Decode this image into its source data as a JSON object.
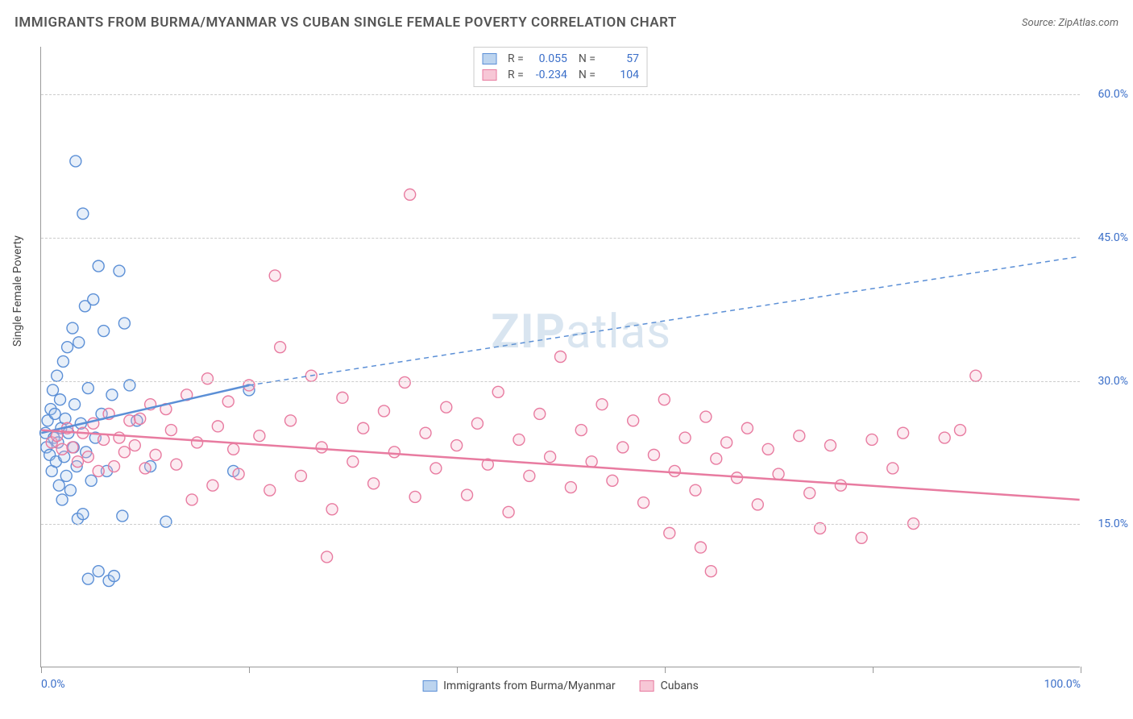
{
  "header": {
    "title": "IMMIGRANTS FROM BURMA/MYANMAR VS CUBAN SINGLE FEMALE POVERTY CORRELATION CHART",
    "source_prefix": "Source: ",
    "source_name": "ZipAtlas.com"
  },
  "chart": {
    "type": "scatter",
    "ylabel": "Single Female Poverty",
    "xlim": [
      0,
      100
    ],
    "ylim": [
      0,
      65
    ],
    "yticks": [
      {
        "value": 15,
        "label": "15.0%"
      },
      {
        "value": 30,
        "label": "30.0%"
      },
      {
        "value": 45,
        "label": "45.0%"
      },
      {
        "value": 60,
        "label": "60.0%"
      }
    ],
    "xtick_positions": [
      0,
      20,
      40,
      60,
      80,
      100
    ],
    "xtick_labels": {
      "start": "0.0%",
      "end": "100.0%"
    },
    "grid_color": "#cccccc",
    "axis_color": "#999999",
    "background_color": "#ffffff",
    "tick_label_color": "#3b6fc9",
    "marker_radius": 7,
    "marker_fill_opacity": 0.28,
    "marker_stroke_width": 1.4,
    "line_width_solid": 2.5,
    "line_width_dashed": 1.5,
    "dash_pattern": "6,5"
  },
  "watermark": {
    "bold": "ZIP",
    "rest": "atlas"
  },
  "series": [
    {
      "key": "burma",
      "label": "Immigrants from Burma/Myanmar",
      "color_stroke": "#5b8fd6",
      "color_fill": "#a8c5e8",
      "swatch_fill": "#bcd4ef",
      "swatch_border": "#5b8fd6",
      "R": "0.055",
      "N": "57",
      "trend": {
        "solid": {
          "x1": 0,
          "y1": 24.5,
          "x2": 20,
          "y2": 29.5
        },
        "dashed": {
          "x1": 20,
          "y1": 29.5,
          "x2": 100,
          "y2": 43.0
        }
      },
      "points": [
        [
          0.4,
          24.5
        ],
        [
          0.5,
          23.0
        ],
        [
          0.6,
          25.8
        ],
        [
          0.8,
          22.2
        ],
        [
          0.9,
          27.0
        ],
        [
          1.0,
          20.5
        ],
        [
          1.1,
          29.0
        ],
        [
          1.2,
          24.0
        ],
        [
          1.3,
          26.5
        ],
        [
          1.4,
          21.5
        ],
        [
          1.5,
          30.5
        ],
        [
          1.6,
          23.5
        ],
        [
          1.7,
          19.0
        ],
        [
          1.8,
          28.0
        ],
        [
          1.9,
          25.0
        ],
        [
          2.0,
          17.5
        ],
        [
          2.1,
          32.0
        ],
        [
          2.2,
          22.0
        ],
        [
          2.3,
          26.0
        ],
        [
          2.4,
          20.0
        ],
        [
          2.5,
          33.5
        ],
        [
          2.6,
          24.5
        ],
        [
          2.8,
          18.5
        ],
        [
          3.0,
          35.5
        ],
        [
          3.1,
          23.0
        ],
        [
          3.2,
          27.5
        ],
        [
          3.4,
          21.0
        ],
        [
          3.5,
          15.5
        ],
        [
          3.6,
          34.0
        ],
        [
          3.8,
          25.5
        ],
        [
          4.0,
          16.0
        ],
        [
          4.2,
          37.8
        ],
        [
          4.3,
          22.5
        ],
        [
          4.5,
          29.2
        ],
        [
          4.8,
          19.5
        ],
        [
          5.0,
          38.5
        ],
        [
          5.2,
          24.0
        ],
        [
          5.5,
          42.0
        ],
        [
          5.8,
          26.5
        ],
        [
          6.0,
          35.2
        ],
        [
          6.3,
          20.5
        ],
        [
          6.5,
          9.0
        ],
        [
          6.8,
          28.5
        ],
        [
          7.0,
          9.5
        ],
        [
          7.5,
          41.5
        ],
        [
          7.8,
          15.8
        ],
        [
          8.0,
          36.0
        ],
        [
          8.5,
          29.5
        ],
        [
          3.3,
          53.0
        ],
        [
          4.0,
          47.5
        ],
        [
          4.5,
          9.2
        ],
        [
          5.5,
          10.0
        ],
        [
          9.2,
          25.8
        ],
        [
          10.5,
          21.0
        ],
        [
          12.0,
          15.2
        ],
        [
          18.5,
          20.5
        ],
        [
          20.0,
          29.0
        ]
      ]
    },
    {
      "key": "cubans",
      "label": "Cubans",
      "color_stroke": "#e87ba0",
      "color_fill": "#f5b8cc",
      "swatch_fill": "#f7c7d6",
      "swatch_border": "#e87ba0",
      "R": "-0.234",
      "N": "104",
      "trend": {
        "solid": {
          "x1": 0,
          "y1": 24.8,
          "x2": 100,
          "y2": 17.5
        }
      },
      "points": [
        [
          1.0,
          23.5
        ],
        [
          1.5,
          24.2
        ],
        [
          2.0,
          22.8
        ],
        [
          2.5,
          25.0
        ],
        [
          3.0,
          23.0
        ],
        [
          3.5,
          21.5
        ],
        [
          4.0,
          24.5
        ],
        [
          4.5,
          22.0
        ],
        [
          5.0,
          25.5
        ],
        [
          5.5,
          20.5
        ],
        [
          6.0,
          23.8
        ],
        [
          6.5,
          26.5
        ],
        [
          7.0,
          21.0
        ],
        [
          7.5,
          24.0
        ],
        [
          8.0,
          22.5
        ],
        [
          8.5,
          25.8
        ],
        [
          9.0,
          23.2
        ],
        [
          9.5,
          26.0
        ],
        [
          10.0,
          20.8
        ],
        [
          10.5,
          27.5
        ],
        [
          11.0,
          22.2
        ],
        [
          12.0,
          27.0
        ],
        [
          12.5,
          24.8
        ],
        [
          13.0,
          21.2
        ],
        [
          14.0,
          28.5
        ],
        [
          14.5,
          17.5
        ],
        [
          15.0,
          23.5
        ],
        [
          16.0,
          30.2
        ],
        [
          16.5,
          19.0
        ],
        [
          17.0,
          25.2
        ],
        [
          18.0,
          27.8
        ],
        [
          18.5,
          22.8
        ],
        [
          19.0,
          20.2
        ],
        [
          20.0,
          29.5
        ],
        [
          21.0,
          24.2
        ],
        [
          22.0,
          18.5
        ],
        [
          23.0,
          33.5
        ],
        [
          24.0,
          25.8
        ],
        [
          25.0,
          20.0
        ],
        [
          26.0,
          30.5
        ],
        [
          27.0,
          23.0
        ],
        [
          28.0,
          16.5
        ],
        [
          29.0,
          28.2
        ],
        [
          30.0,
          21.5
        ],
        [
          31.0,
          25.0
        ],
        [
          22.5,
          41.0
        ],
        [
          32.0,
          19.2
        ],
        [
          33.0,
          26.8
        ],
        [
          34.0,
          22.5
        ],
        [
          35.0,
          29.8
        ],
        [
          35.5,
          49.5
        ],
        [
          36.0,
          17.8
        ],
        [
          37.0,
          24.5
        ],
        [
          38.0,
          20.8
        ],
        [
          39.0,
          27.2
        ],
        [
          40.0,
          23.2
        ],
        [
          41.0,
          18.0
        ],
        [
          42.0,
          25.5
        ],
        [
          43.0,
          21.2
        ],
        [
          44.0,
          28.8
        ],
        [
          45.0,
          16.2
        ],
        [
          46.0,
          23.8
        ],
        [
          47.0,
          20.0
        ],
        [
          48.0,
          26.5
        ],
        [
          49.0,
          22.0
        ],
        [
          50.0,
          32.5
        ],
        [
          51.0,
          18.8
        ],
        [
          52.0,
          24.8
        ],
        [
          53.0,
          21.5
        ],
        [
          54.0,
          27.5
        ],
        [
          55.0,
          19.5
        ],
        [
          56.0,
          23.0
        ],
        [
          57.0,
          25.8
        ],
        [
          58.0,
          17.2
        ],
        [
          59.0,
          22.2
        ],
        [
          60.0,
          28.0
        ],
        [
          61.0,
          20.5
        ],
        [
          62.0,
          24.0
        ],
        [
          63.0,
          18.5
        ],
        [
          64.0,
          26.2
        ],
        [
          60.5,
          14.0
        ],
        [
          65.0,
          21.8
        ],
        [
          66.0,
          23.5
        ],
        [
          67.0,
          19.8
        ],
        [
          68.0,
          25.0
        ],
        [
          69.0,
          17.0
        ],
        [
          70.0,
          22.8
        ],
        [
          71.0,
          20.2
        ],
        [
          63.5,
          12.5
        ],
        [
          73.0,
          24.2
        ],
        [
          74.0,
          18.2
        ],
        [
          75.0,
          14.5
        ],
        [
          76.0,
          23.2
        ],
        [
          77.0,
          19.0
        ],
        [
          64.5,
          10.0
        ],
        [
          80.0,
          23.8
        ],
        [
          79.0,
          13.5
        ],
        [
          82.0,
          20.8
        ],
        [
          83.0,
          24.5
        ],
        [
          84.0,
          15.0
        ],
        [
          87.0,
          24.0
        ],
        [
          88.5,
          24.8
        ],
        [
          90.0,
          30.5
        ],
        [
          27.5,
          11.5
        ]
      ]
    }
  ],
  "legend_stats": {
    "r_label": "R =",
    "n_label": "N ="
  }
}
